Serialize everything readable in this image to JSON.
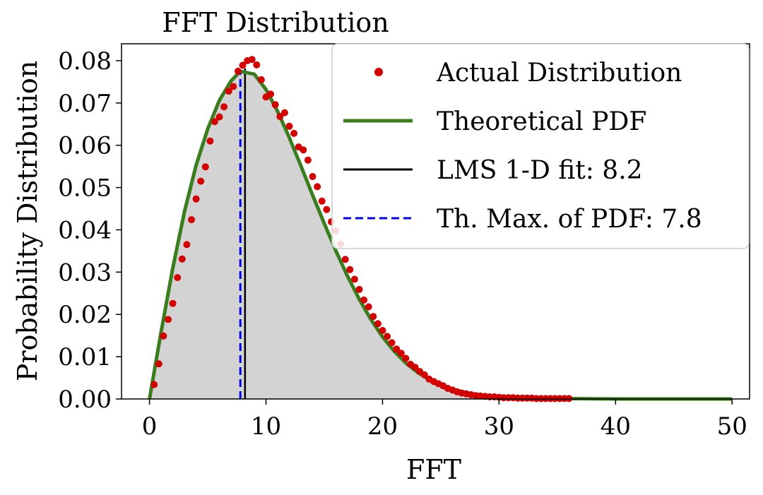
{
  "chart_data": {
    "type": "line",
    "title": "FFT Distribution",
    "xlabel": "FFT",
    "ylabel": "Probability Distribution",
    "xlim": [
      -2.4,
      51.5
    ],
    "ylim": [
      0,
      0.084
    ],
    "xticks": [
      0,
      10,
      20,
      30,
      40,
      50
    ],
    "xtick_labels": [
      "0",
      "10",
      "20",
      "30",
      "40",
      "50"
    ],
    "yticks": [
      0.0,
      0.01,
      0.02,
      0.03,
      0.04,
      0.05,
      0.06,
      0.07,
      0.08
    ],
    "ytick_labels": [
      "0.00",
      "0.01",
      "0.02",
      "0.03",
      "0.04",
      "0.05",
      "0.06",
      "0.07",
      "0.08"
    ],
    "grid": false,
    "legend_position": "top-right",
    "legend": [
      {
        "label": "Actual Distribution",
        "style": "marker",
        "color": "#d40000"
      },
      {
        "label": "Theoretical PDF",
        "style": "line",
        "color": "#3a7d1e"
      },
      {
        "label": "LMS 1-D fit: 8.2",
        "style": "line",
        "color": "#000000"
      },
      {
        "label": "Th. Max. of PDF: 7.8",
        "style": "dashed",
        "color": "#0000ee"
      }
    ],
    "colors": {
      "fill": "#d3d3d3",
      "theoretical": "#3a7d1e",
      "actual": "#d40000",
      "lms": "#000000",
      "thmax": "#0000ee"
    },
    "vlines": {
      "lms_fit": 8.2,
      "th_max": 7.8
    },
    "series": [
      {
        "name": "Theoretical PDF",
        "x": [
          0,
          1,
          2,
          3,
          4,
          5,
          6,
          7,
          7.8,
          9,
          10,
          11,
          12,
          13,
          14,
          15,
          16,
          17,
          18,
          19,
          20,
          21,
          22,
          23,
          24,
          25,
          26,
          27,
          28,
          29,
          30,
          32,
          35,
          40,
          45,
          50
        ],
        "values": [
          0.0,
          0.0159,
          0.031,
          0.0443,
          0.0553,
          0.0639,
          0.0706,
          0.0752,
          0.0775,
          0.0768,
          0.0732,
          0.068,
          0.0618,
          0.0551,
          0.0482,
          0.0415,
          0.035,
          0.029,
          0.0236,
          0.0188,
          0.0147,
          0.0113,
          0.0085,
          0.0063,
          0.0046,
          0.0033,
          0.0023,
          0.0016,
          0.0011,
          0.0007,
          0.0005,
          0.0002,
          0.0001,
          0.0,
          0.0,
          0.0
        ]
      },
      {
        "name": "Actual Distribution",
        "x": [
          0.4,
          0.8,
          1.2,
          1.6,
          2.0,
          2.4,
          2.8,
          3.2,
          3.6,
          4.0,
          4.4,
          4.8,
          5.2,
          5.6,
          6.0,
          6.4,
          6.8,
          7.2,
          7.6,
          8.0,
          8.4,
          8.8,
          9.2,
          9.6,
          10.0,
          10.4,
          10.8,
          11.2,
          11.6,
          12.0,
          12.4,
          12.8,
          13.2,
          13.6,
          14.0,
          14.4,
          14.8,
          15.2,
          15.6,
          16.0,
          16.4,
          16.8,
          17.2,
          17.6,
          18.0,
          18.4,
          18.8,
          19.2,
          19.6,
          20.0,
          20.4,
          20.8,
          21.2,
          21.6,
          22.0,
          22.4,
          22.8,
          23.2,
          23.6,
          24.0,
          24.4,
          24.8,
          25.2,
          25.6,
          26.0,
          26.4,
          26.8,
          27.2,
          27.6,
          28.0,
          28.4,
          28.8,
          29.2,
          29.6,
          30.0,
          30.4,
          30.8,
          31.2,
          31.6,
          32.0,
          32.4,
          32.8,
          33.2,
          33.6,
          34.0,
          34.4,
          34.8,
          35.2,
          35.6,
          36.0
        ],
        "values": [
          0.0034,
          0.0083,
          0.0149,
          0.0188,
          0.0226,
          0.0287,
          0.0331,
          0.0365,
          0.0424,
          0.0473,
          0.0515,
          0.0549,
          0.061,
          0.0656,
          0.0667,
          0.0691,
          0.0728,
          0.0739,
          0.0775,
          0.0789,
          0.08,
          0.0803,
          0.079,
          0.0755,
          0.0714,
          0.0721,
          0.0696,
          0.0668,
          0.0677,
          0.0645,
          0.0628,
          0.0596,
          0.0589,
          0.0565,
          0.0526,
          0.0502,
          0.0468,
          0.0448,
          0.0419,
          0.0398,
          0.0366,
          0.033,
          0.0306,
          0.0283,
          0.0259,
          0.0234,
          0.0218,
          0.0195,
          0.0178,
          0.0162,
          0.0148,
          0.0133,
          0.0118,
          0.0108,
          0.0096,
          0.0082,
          0.0075,
          0.0065,
          0.0057,
          0.0047,
          0.0041,
          0.0036,
          0.0031,
          0.0025,
          0.0021,
          0.0017,
          0.0014,
          0.0012,
          0.001,
          0.0008,
          0.0007,
          0.0006,
          0.0005,
          0.0005,
          0.0004,
          0.0003,
          0.0003,
          0.0003,
          0.0002,
          0.0002,
          0.0002,
          0.0002,
          0.0001,
          0.0001,
          0.0001,
          0.0001,
          0.0001,
          0.0001,
          0.0001,
          0.0001
        ]
      }
    ]
  }
}
